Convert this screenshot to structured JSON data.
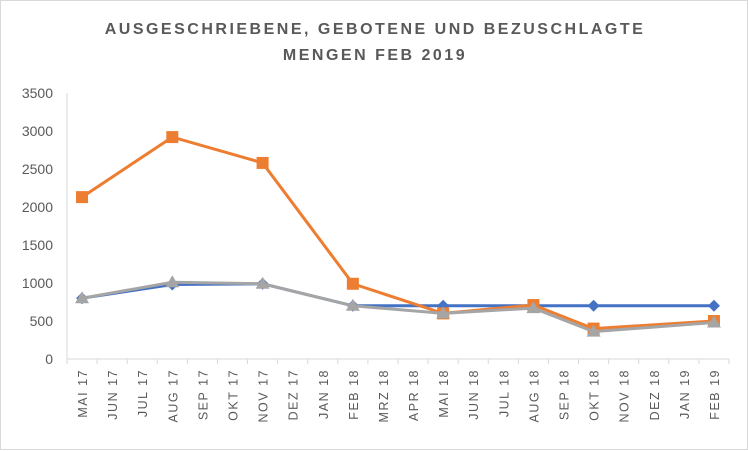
{
  "chart_data": {
    "type": "line",
    "title_lines": [
      "AUSGESCHRIEBENE, GEBOTENE UND BEZUSCHLAGTE",
      "MENGEN FEB 2019"
    ],
    "categories": [
      "MAI 17",
      "JUN 17",
      "JUL 17",
      "AUG 17",
      "SEP 17",
      "OKT 17",
      "NOV 17",
      "DEZ 17",
      "JAN 18",
      "FEB 18",
      "MRZ 18",
      "APR 18",
      "MAI 18",
      "JUN 18",
      "JUL 18",
      "AUG 18",
      "SEP 18",
      "OKT 18",
      "NOV 18",
      "DEZ 18",
      "JAN 19",
      "FEB 19"
    ],
    "ylim": [
      0,
      3500
    ],
    "yticks": [
      0,
      500,
      1000,
      1500,
      2000,
      2500,
      3000,
      3500
    ],
    "grid": false,
    "series": [
      {
        "color": "#4472c4",
        "marker": "diamond",
        "values": [
          800,
          null,
          null,
          980,
          null,
          null,
          990,
          null,
          null,
          700,
          null,
          null,
          700,
          null,
          null,
          700,
          null,
          700,
          null,
          null,
          null,
          700
        ]
      },
      {
        "color": "#ed7d31",
        "marker": "square",
        "values": [
          2130,
          null,
          null,
          2920,
          null,
          null,
          2580,
          null,
          null,
          990,
          null,
          null,
          600,
          null,
          null,
          710,
          null,
          400,
          null,
          null,
          null,
          500
        ]
      },
      {
        "color": "#a5a5a5",
        "marker": "triangle",
        "values": [
          800,
          null,
          null,
          1010,
          null,
          null,
          990,
          null,
          null,
          700,
          null,
          null,
          600,
          null,
          null,
          670,
          null,
          360,
          null,
          null,
          null,
          480
        ]
      }
    ]
  }
}
